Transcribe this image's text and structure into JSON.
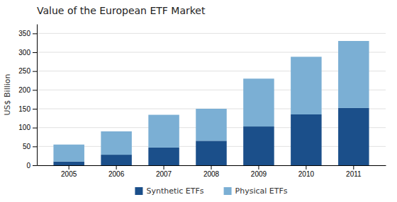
{
  "chart_data": {
    "type": "bar",
    "stacked": true,
    "title": "Value of the European ETF Market",
    "ylabel": "US$ Billion",
    "categories": [
      "2005",
      "2006",
      "2007",
      "2008",
      "2009",
      "2010",
      "2011"
    ],
    "series": [
      {
        "name": "Synthetic ETFs",
        "color": "#1B4F8A",
        "values": [
          10,
          28,
          47,
          65,
          103,
          135,
          152
        ]
      },
      {
        "name": "Physical ETFs",
        "color": "#7BAFD4",
        "values": [
          45,
          62,
          87,
          85,
          127,
          153,
          178
        ]
      }
    ],
    "ylim": [
      0,
      375
    ],
    "yticks": [
      0,
      50,
      100,
      150,
      200,
      250,
      300,
      350
    ],
    "grid": true,
    "legend": "bottom"
  }
}
